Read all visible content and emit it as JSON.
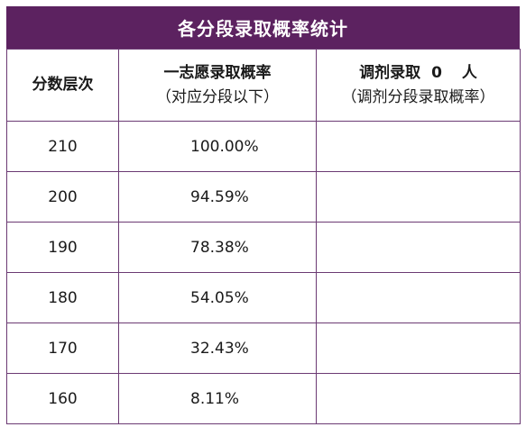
{
  "title": "各分段录取概率统计",
  "headers": {
    "col1": "分数层次",
    "col2_line1": "一志愿录取概率",
    "col2_line2": "（对应分段以下）",
    "col3_prefix": "调剂录取",
    "col3_count": "0",
    "col3_suffix": "人",
    "col3_line2": "（调剂分段录取概率）"
  },
  "rows": [
    {
      "score": "210",
      "rate": "100.00%",
      "adjust": ""
    },
    {
      "score": "200",
      "rate": "94.59%",
      "adjust": ""
    },
    {
      "score": "190",
      "rate": "78.38%",
      "adjust": ""
    },
    {
      "score": "180",
      "rate": "54.05%",
      "adjust": ""
    },
    {
      "score": "170",
      "rate": "32.43%",
      "adjust": ""
    },
    {
      "score": "160",
      "rate": "8.11%",
      "adjust": ""
    }
  ],
  "colors": {
    "title_background": "#5c2260",
    "title_text": "#ffffff",
    "border": "#6b3a73"
  }
}
